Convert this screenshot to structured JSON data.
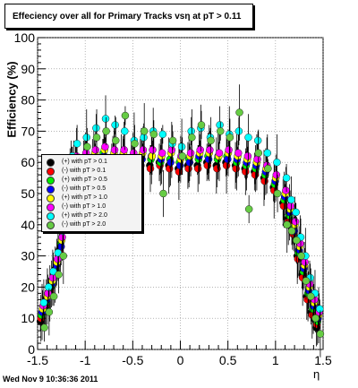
{
  "footer": {
    "timestamp": "Wed Nov  9 10:36:36 2011"
  },
  "chart_data": {
    "type": "scatter",
    "title": "Effeciency over all for Primary Tracks vsη at pT > 0.11",
    "xlabel": "η",
    "ylabel": "Efficiency (%)",
    "xlim": [
      -1.5,
      1.5
    ],
    "ylim": [
      0,
      100
    ],
    "x_ticks": [
      "-1.5",
      "-1",
      "-0.5",
      "0",
      "0.5",
      "1",
      "1.5"
    ],
    "y_ticks": [
      "0",
      "10",
      "20",
      "30",
      "40",
      "50",
      "60",
      "70",
      "80",
      "90",
      "100"
    ],
    "grid": true,
    "legend_position": "left-middle",
    "x": [
      -1.45,
      -1.4,
      -1.35,
      -1.3,
      -1.25,
      -1.2,
      -1.15,
      -1.1,
      -1.0,
      -0.9,
      -0.8,
      -0.7,
      -0.6,
      -0.5,
      -0.4,
      -0.3,
      -0.2,
      -0.1,
      0.0,
      0.1,
      0.2,
      0.3,
      0.4,
      0.5,
      0.6,
      0.7,
      0.8,
      0.9,
      1.0,
      1.1,
      1.15,
      1.2,
      1.25,
      1.3,
      1.35,
      1.4,
      1.45
    ],
    "series": [
      {
        "name": "(+) with pT > 0.1",
        "color": "#000000",
        "values": [
          9,
          13,
          18,
          25,
          32,
          48,
          55,
          58,
          59,
          60,
          61,
          60,
          60,
          59,
          60,
          59,
          60,
          59,
          58,
          59,
          59,
          60,
          59,
          60,
          59,
          58,
          57,
          55,
          52,
          47,
          42,
          38,
          30,
          24,
          17,
          12,
          7
        ]
      },
      {
        "name": "(-) with pT > 0.1",
        "color": "#ff0000",
        "values": [
          10,
          14,
          19,
          24,
          31,
          47,
          55,
          57,
          58,
          59,
          60,
          59,
          59,
          58,
          59,
          58,
          59,
          58,
          57,
          58,
          58,
          59,
          58,
          59,
          58,
          57,
          56,
          54,
          51,
          46,
          41,
          37,
          29,
          23,
          16,
          11,
          8
        ]
      },
      {
        "name": "(+) with pT > 0.5",
        "color": "#00ee00",
        "values": [
          11,
          15,
          20,
          26,
          34,
          50,
          57,
          60,
          61,
          62,
          63,
          61,
          62,
          61,
          62,
          61,
          60,
          61,
          60,
          61,
          61,
          62,
          61,
          62,
          60,
          59,
          58,
          56,
          53,
          48,
          43,
          39,
          31,
          25,
          18,
          13,
          9
        ]
      },
      {
        "name": "(-) with pT > 0.5",
        "color": "#0000ff",
        "values": [
          12,
          16,
          21,
          27,
          33,
          49,
          56,
          59,
          60,
          61,
          62,
          62,
          61,
          60,
          61,
          62,
          61,
          60,
          59,
          60,
          62,
          61,
          62,
          61,
          61,
          60,
          59,
          57,
          54,
          49,
          44,
          38,
          32,
          26,
          19,
          14,
          10
        ]
      },
      {
        "name": "(+) with pT > 1.0",
        "color": "#ffff00",
        "values": [
          13,
          17,
          22,
          28,
          35,
          51,
          58,
          61,
          62,
          63,
          64,
          63,
          63,
          62,
          63,
          62,
          62,
          63,
          61,
          62,
          63,
          63,
          62,
          63,
          62,
          61,
          60,
          58,
          55,
          50,
          45,
          40,
          33,
          27,
          20,
          15,
          11
        ]
      },
      {
        "name": "(-) with pT > 1.0",
        "color": "#ff00ff",
        "values": [
          14,
          18,
          23,
          29,
          36,
          52,
          59,
          62,
          63,
          64,
          65,
          64,
          64,
          63,
          64,
          64,
          63,
          64,
          62,
          63,
          64,
          64,
          63,
          64,
          63,
          62,
          61,
          59,
          56,
          51,
          46,
          41,
          34,
          28,
          21,
          16,
          12
        ]
      },
      {
        "name": "(+) with pT > 2.0",
        "color": "#00ffff",
        "values": [
          15,
          20,
          25,
          31,
          38,
          55,
          62,
          66,
          68,
          71,
          74,
          72,
          70,
          67,
          68,
          70,
          69,
          66,
          65,
          70,
          71,
          68,
          72,
          69,
          70,
          68,
          67,
          63,
          60,
          55,
          48,
          44,
          36,
          30,
          23,
          18,
          13
        ]
      },
      {
        "name": "(-) with pT > 2.0",
        "color": "#66cc44",
        "values": [
          7,
          12,
          17,
          24,
          30,
          44,
          52,
          56,
          65,
          68,
          70,
          67,
          75,
          66,
          70,
          69,
          50,
          67,
          62,
          68,
          72,
          67,
          70,
          68,
          76,
          45,
          63,
          58,
          50,
          40,
          38,
          35,
          30,
          22,
          17,
          10,
          5
        ]
      }
    ]
  }
}
